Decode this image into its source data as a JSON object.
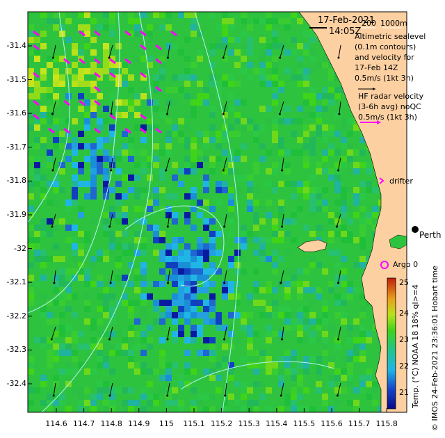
{
  "map": {
    "lon_range": [
      114.5,
      115.88
    ],
    "lat_range": [
      -32.5,
      -31.3
    ],
    "x_ticks": [
      "114.6",
      "114.7",
      "114.8",
      "114.9",
      "115",
      "115.1",
      "115.2",
      "115.3",
      "115.4",
      "115.5",
      "115.6",
      "115.7",
      "115.8"
    ],
    "y_ticks": [
      "-31.4",
      "-31.5",
      "-31.6",
      "-31.7",
      "-31.8",
      "-31.9",
      "-32",
      "-32.1",
      "-32.2",
      "-32.3",
      "-32.4"
    ]
  },
  "annotations": {
    "date": "17-Feb-2021",
    "time": "14:05Z",
    "depth_200": "200",
    "depth_1000": "1000m",
    "altimetric": [
      "Altimetric sealevel",
      "(0.1m contours)",
      "and velocity for",
      "17-Feb 14Z",
      "0.5m/s (1kt 3h)"
    ],
    "hf_radar": [
      "HF radar velocity",
      "(3-6h avg) noQC",
      "0.5m/s (1kt 3h)"
    ],
    "drifter": "drifter",
    "argo": "Argo 0",
    "place_perth": "Perth",
    "hobart_time": "Hobart time",
    "credit": "© IMOS 24-Feb-2021 23:36:01 Hobart time",
    "colorbar_label": "Temp. (°C) NOAA 18 18% ql>=4"
  },
  "colorbar": {
    "ticks": [
      "25",
      "24",
      "23",
      "22",
      "21"
    ],
    "range": [
      20.5,
      25.5
    ]
  },
  "colors": {
    "land": "#fdd0a2",
    "contour": "#b9f0ff",
    "radar_arrow": "#ff00ff",
    "argo": "#ff00ff"
  }
}
